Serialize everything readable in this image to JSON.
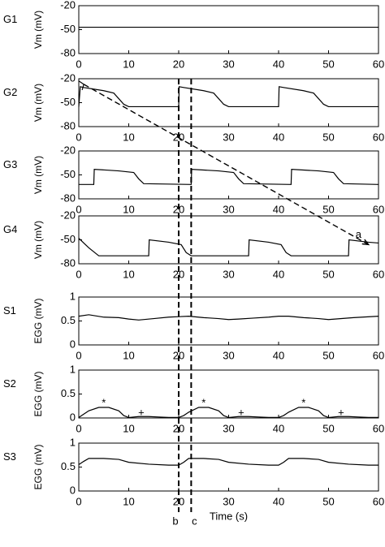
{
  "chart_data": [
    {
      "type": "line",
      "name": "G1",
      "ylabel": "Vm (mV)",
      "x": [
        0,
        60
      ],
      "values": [
        -47,
        -47
      ],
      "color": "#000000",
      "xlim": [
        0,
        60
      ],
      "xticks": [
        0,
        10,
        20,
        30,
        40,
        50,
        60
      ],
      "ylim": [
        -80,
        -20
      ],
      "yticks": [
        -80,
        -50,
        -20
      ]
    },
    {
      "type": "line",
      "name": "G2",
      "ylabel": "Vm (mV)",
      "x": [
        0,
        0.3,
        1,
        5,
        7,
        8,
        9,
        10,
        20,
        20.1,
        21,
        25,
        27,
        28,
        29,
        30,
        40,
        40.1,
        41,
        45,
        47,
        48,
        49,
        50,
        60
      ],
      "values": [
        -55,
        -30,
        -31,
        -35,
        -38,
        -45,
        -52,
        -55,
        -55,
        -30,
        -31,
        -35,
        -38,
        -45,
        -52,
        -55,
        -55,
        -30,
        -31,
        -35,
        -38,
        -45,
        -52,
        -55,
        -55
      ],
      "color": "#000000",
      "xlim": [
        0,
        60
      ],
      "xticks": [
        0,
        10,
        20,
        30,
        40,
        50,
        60
      ],
      "ylim": [
        -80,
        -20
      ],
      "yticks": [
        -80,
        -50,
        -20
      ],
      "arrow_start": {
        "x": 1,
        "y": -27
      }
    },
    {
      "type": "line",
      "name": "G3",
      "ylabel": "Vm (mV)",
      "x": [
        0,
        3,
        3.1,
        8,
        11,
        12,
        13,
        22.5,
        22.6,
        28,
        31,
        32,
        33,
        42.5,
        42.6,
        48,
        51,
        52,
        53,
        60
      ],
      "values": [
        -62,
        -62,
        -43,
        -45,
        -47,
        -55,
        -61,
        -62,
        -43,
        -45,
        -47,
        -55,
        -61,
        -62,
        -43,
        -45,
        -47,
        -55,
        -61,
        -62
      ],
      "color": "#000000",
      "xlim": [
        0,
        60
      ],
      "xticks": [
        0,
        10,
        20,
        30,
        40,
        50,
        60
      ],
      "ylim": [
        -80,
        -20
      ],
      "yticks": [
        -80,
        -50,
        -20
      ]
    },
    {
      "type": "line",
      "name": "G4",
      "ylabel": "Vm (mV)",
      "x": [
        0,
        2,
        4,
        14,
        14.1,
        18,
        20.5,
        21.5,
        22.5,
        34,
        34.1,
        38,
        40.5,
        41.5,
        42.5,
        54,
        54.1,
        58,
        60
      ],
      "values": [
        -48,
        -60,
        -70,
        -70,
        -50,
        -53,
        -56,
        -66,
        -70,
        -70,
        -50,
        -53,
        -56,
        -66,
        -70,
        -70,
        -50,
        -53,
        -54
      ],
      "color": "#000000",
      "xlim": [
        0,
        60
      ],
      "xticks": [
        0,
        10,
        20,
        30,
        40,
        50,
        60
      ],
      "ylim": [
        -80,
        -20
      ],
      "yticks": [
        -80,
        -50,
        -20
      ],
      "arrow_end": {
        "x": 58,
        "y": -56,
        "label": "a",
        "label_x": 56,
        "label_y": -44
      }
    },
    {
      "type": "line",
      "name": "S1",
      "ylabel": "EGG (mV)",
      "x": [
        0,
        2,
        5,
        8,
        10,
        12,
        15,
        18,
        20,
        22,
        25,
        28,
        30,
        32,
        35,
        38,
        40,
        42,
        45,
        48,
        50,
        55,
        60
      ],
      "values": [
        0.6,
        0.63,
        0.58,
        0.57,
        0.54,
        0.52,
        0.55,
        0.58,
        0.59,
        0.6,
        0.57,
        0.55,
        0.53,
        0.54,
        0.56,
        0.58,
        0.6,
        0.6,
        0.57,
        0.55,
        0.53,
        0.57,
        0.6
      ],
      "color": "#000000",
      "xlim": [
        0,
        60
      ],
      "xticks": [
        0,
        10,
        20,
        30,
        40,
        50,
        60
      ],
      "ylim": [
        0,
        1
      ],
      "yticks": [
        0,
        0.5,
        1
      ]
    },
    {
      "type": "line",
      "name": "S2",
      "ylabel": "EGG (mV)",
      "x": [
        0,
        1,
        2,
        4,
        6,
        8,
        9,
        10,
        11,
        12,
        14,
        16,
        18,
        20,
        21,
        22,
        24,
        26,
        28,
        29,
        30,
        31,
        32,
        34,
        36,
        38,
        40,
        41,
        42,
        44,
        46,
        48,
        49,
        50,
        51,
        52,
        54,
        56,
        58,
        60
      ],
      "values": [
        0.01,
        0.08,
        0.15,
        0.22,
        0.22,
        0.15,
        0.05,
        0.01,
        0.02,
        0.03,
        0.03,
        0.02,
        0.01,
        0.01,
        0.05,
        0.12,
        0.22,
        0.22,
        0.15,
        0.05,
        0.01,
        0.02,
        0.03,
        0.03,
        0.02,
        0.01,
        0.01,
        0.05,
        0.12,
        0.22,
        0.22,
        0.15,
        0.05,
        0.01,
        0.02,
        0.03,
        0.03,
        0.02,
        0.01,
        0.01
      ],
      "color": "#000000",
      "xlim": [
        0,
        60
      ],
      "xticks": [
        0,
        10,
        20,
        30,
        40,
        50,
        60
      ],
      "ylim": [
        0,
        1
      ],
      "yticks": [
        0,
        0.5,
        1
      ],
      "annotations": [
        {
          "text": "*",
          "x": 5,
          "y": 0.3
        },
        {
          "text": "+",
          "x": 12.5,
          "y": 0.1
        },
        {
          "text": "*",
          "x": 25,
          "y": 0.3
        },
        {
          "text": "+",
          "x": 32.5,
          "y": 0.1
        },
        {
          "text": "*",
          "x": 45,
          "y": 0.3
        },
        {
          "text": "+",
          "x": 52.5,
          "y": 0.1
        }
      ]
    },
    {
      "type": "line",
      "name": "S3",
      "ylabel": "EGG (mV)",
      "xlabel": "Time (s)",
      "x": [
        0,
        1,
        2,
        5,
        8,
        10,
        14,
        18,
        20,
        21,
        22,
        25,
        28,
        30,
        34,
        38,
        40,
        41,
        42,
        45,
        48,
        50,
        54,
        58,
        60
      ],
      "values": [
        0.55,
        0.62,
        0.68,
        0.68,
        0.66,
        0.6,
        0.56,
        0.54,
        0.54,
        0.6,
        0.68,
        0.68,
        0.66,
        0.6,
        0.56,
        0.54,
        0.54,
        0.6,
        0.68,
        0.68,
        0.66,
        0.6,
        0.56,
        0.54,
        0.54
      ],
      "color": "#000000",
      "xlim": [
        0,
        60
      ],
      "xticks": [
        0,
        10,
        20,
        30,
        40,
        50,
        60
      ],
      "ylim": [
        0,
        1
      ],
      "yticks": [
        0,
        0.5,
        1
      ],
      "vlines": [
        {
          "x": 20,
          "label": "b"
        },
        {
          "x": 22.5,
          "label": "c"
        }
      ]
    }
  ]
}
